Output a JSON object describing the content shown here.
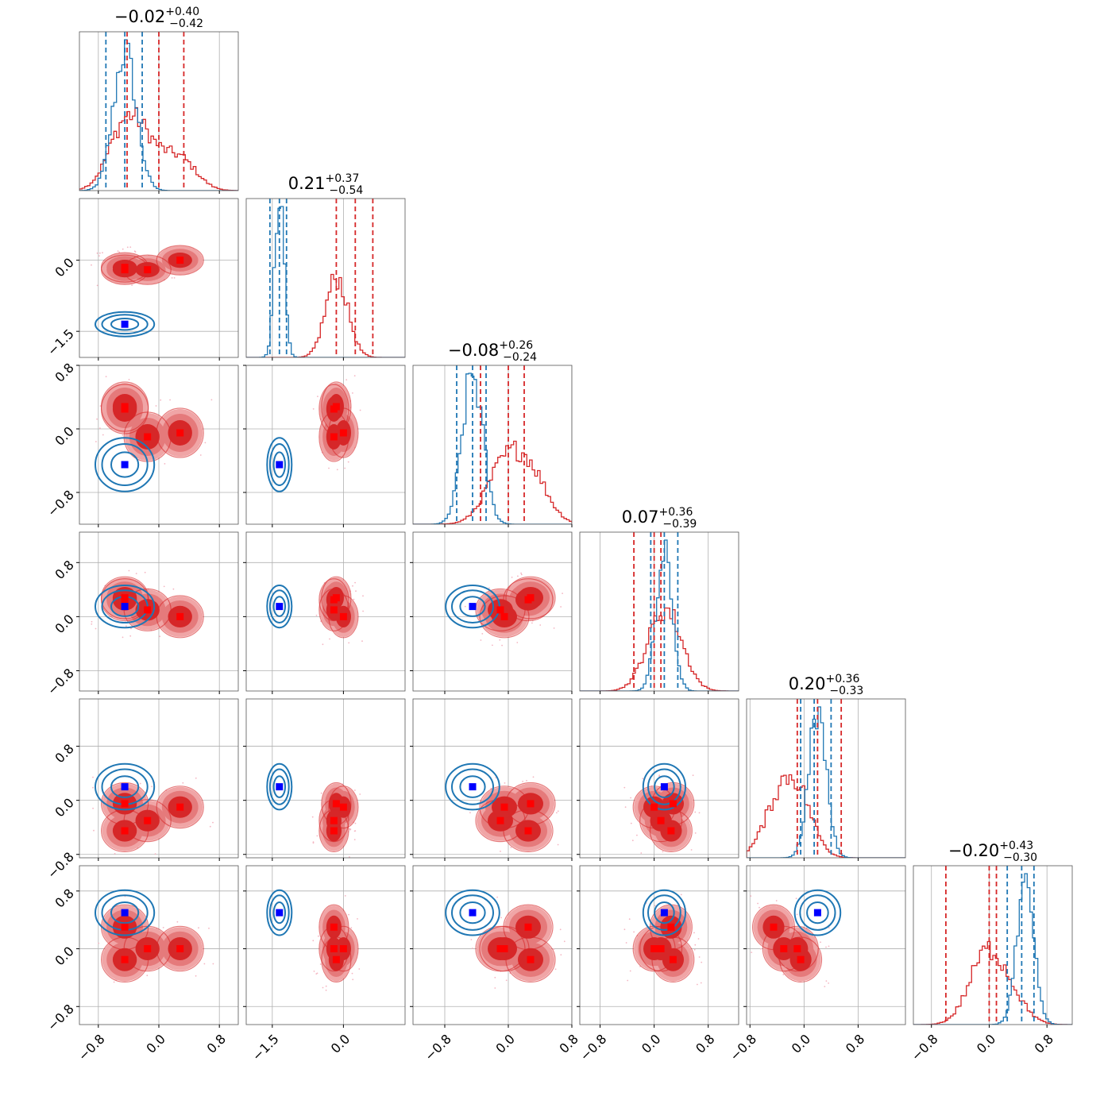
{
  "colors": {
    "red": "#d62728",
    "red_fill_outer": "#f0a5a6",
    "red_fill_inner": "#e57a7b",
    "blue": "#1f77b4",
    "marker_red": "#ff0000",
    "marker_blue": "#0000ff",
    "grid": "#b0b0b0",
    "frame": "#000000"
  },
  "chart_data": {
    "type": "corner",
    "n_params": 6,
    "grid": true,
    "legend": "none",
    "ranges": [
      [
        -1.05,
        1.05
      ],
      [
        -2.05,
        1.3
      ],
      [
        -1.2,
        0.8
      ],
      [
        -1.1,
        1.25
      ],
      [
        -0.85,
        1.5
      ],
      [
        -1.05,
        1.15
      ]
    ],
    "ticks": [
      [
        -0.8,
        0.0,
        0.8
      ],
      [
        -1.5,
        0.0
      ],
      [
        -0.8,
        0.0,
        0.8
      ],
      [
        -0.8,
        0.0,
        0.8
      ],
      [
        -0.8,
        0.0,
        0.8
      ],
      [
        -0.8,
        0.0,
        0.8
      ]
    ],
    "tick_labels": [
      [
        "−0.8",
        "0.0",
        "0.8"
      ],
      [
        "−1.5",
        "0.0"
      ],
      [
        "−0.8",
        "0.0",
        "0.8"
      ],
      [
        "−0.8",
        "0.0",
        "0.8"
      ],
      [
        "−0.8",
        "0.0",
        "0.8"
      ],
      [
        "−0.8",
        "0.0",
        "0.8"
      ]
    ],
    "titles": [
      {
        "median": "−0.02",
        "plus": "+0.40",
        "minus": "−0.42"
      },
      {
        "median": "0.21",
        "plus": "+0.37",
        "minus": "−0.54"
      },
      {
        "median": "−0.08",
        "plus": "+0.26",
        "minus": "−0.24"
      },
      {
        "median": "0.07",
        "plus": "+0.36",
        "minus": "−0.39"
      },
      {
        "median": "0.20",
        "plus": "+0.36",
        "minus": "−0.33"
      },
      {
        "median": "−0.20",
        "plus": "+0.43",
        "minus": "−0.30"
      }
    ],
    "red_dist": {
      "quantiles": [
        [
          -0.42,
          0.0,
          0.33
        ],
        [
          -0.15,
          0.25,
          0.62
        ],
        [
          -0.35,
          0.0,
          0.2
        ],
        [
          -0.3,
          0.0,
          0.1
        ],
        [
          -0.1,
          0.2,
          0.55
        ],
        [
          -0.6,
          0.0,
          0.1
        ]
      ],
      "components": [
        [
          [
            -0.45,
            0.0,
            0.0
          ],
          [
            -0.15,
            0.0,
            0.1
          ],
          [
            0.28,
            -0.1,
            0.15
          ],
          [
            0.28,
            -0.3,
            -0.2
          ],
          [
            -0.05,
            -0.25,
            0.5
          ],
          [
            -0.15,
            0.0,
            0.3
          ]
        ],
        [
          [
            -0.45,
            0.0,
            0.0
          ],
          [
            -0.2,
            0.45,
            0.35
          ],
          [
            0.25,
            0.45,
            0.4
          ],
          [
            0.25,
            -0.35,
            0.0
          ],
          [
            -0.45,
            0.25,
            -0.1
          ],
          [
            0.3,
            -0.4,
            -0.3
          ]
        ],
        [
          [
            -0.15,
            0.0,
            -0.1
          ],
          [
            -0.2,
            0.25,
            0.0
          ],
          [
            -0.1,
            -0.3,
            -0.1
          ],
          [
            0.1,
            -0.45,
            0.25
          ],
          [
            -0.3,
            -0.4,
            0.2
          ],
          [
            0.0,
            -0.2,
            -0.25
          ]
        ],
        [
          [
            0.28,
            0.0,
            -0.05
          ],
          [
            0.0,
            0.0,
            0.0
          ],
          [
            -0.05,
            0.1,
            0.0
          ],
          [
            0.0,
            0.0,
            -0.3
          ],
          [
            -0.1,
            0.35,
            0.45
          ],
          [
            0.0,
            -0.25,
            -0.3
          ]
        ]
      ]
    },
    "blue_dist": {
      "quantiles": [
        [
          -0.7,
          -0.45,
          -0.22
        ],
        [
          -1.55,
          -1.35,
          -1.2
        ],
        [
          -0.65,
          -0.45,
          -0.28
        ],
        [
          -0.05,
          0.15,
          0.35
        ],
        [
          -0.05,
          0.15,
          0.4
        ],
        [
          0.25,
          0.45,
          0.62
        ]
      ],
      "center": [
        -0.45,
        -1.35,
        -0.45,
        0.15,
        0.2,
        0.5
      ],
      "sigma": [
        0.15,
        0.1,
        0.13,
        0.12,
        0.13,
        0.12
      ]
    },
    "markers": {
      "red_points_note": "",
      "blue_point": [
        -0.45,
        -1.35,
        -0.45,
        0.15,
        0.2,
        0.5
      ]
    }
  }
}
